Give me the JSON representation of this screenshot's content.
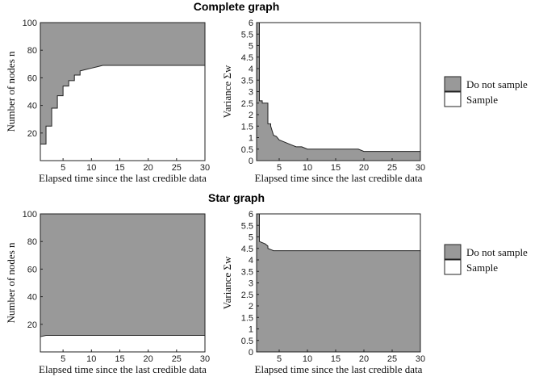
{
  "colors": {
    "do_not_sample": "#999999",
    "sample": "#ffffff",
    "axis": "#222222"
  },
  "sections": [
    {
      "title": "Complete graph"
    },
    {
      "title": "Star graph"
    }
  ],
  "legends": [
    {
      "items": [
        {
          "label": "Do not sample",
          "color": "#999999"
        },
        {
          "label": "Sample",
          "color": "#ffffff"
        }
      ]
    },
    {
      "items": [
        {
          "label": "Do not sample",
          "color": "#999999"
        },
        {
          "label": "Sample",
          "color": "#ffffff"
        }
      ]
    }
  ],
  "chart_data": [
    {
      "type": "area",
      "section": "Complete graph",
      "xlabel": "Elapsed time since the last credible data",
      "ylabel": "Number of nodes n",
      "xlim": [
        1,
        30
      ],
      "ylim": [
        0,
        100
      ],
      "xticks": [
        5,
        10,
        15,
        20,
        25,
        30
      ],
      "yticks": [
        20,
        40,
        60,
        80,
        100
      ],
      "upper_region": "Do not sample",
      "lower_region": "Sample",
      "boundary": {
        "x": [
          1,
          2,
          2,
          3,
          3,
          4,
          4,
          5,
          5,
          6,
          6,
          7,
          7,
          8,
          8,
          9,
          10,
          11,
          12,
          30
        ],
        "y": [
          12,
          12,
          25,
          25,
          38,
          38,
          47,
          47,
          54,
          54,
          58,
          58,
          62,
          62,
          65,
          66,
          67,
          68,
          69,
          69
        ]
      }
    },
    {
      "type": "area",
      "section": "Complete graph",
      "xlabel": "Elapsed time since the last credible data",
      "ylabel": "Variance Σw",
      "xlim": [
        1,
        30
      ],
      "ylim": [
        0,
        6
      ],
      "xticks": [
        5,
        10,
        15,
        20,
        25,
        30
      ],
      "yticks": [
        0,
        0.5,
        1,
        1.5,
        2,
        2.5,
        3,
        3.5,
        4,
        4.5,
        5,
        5.5,
        6
      ],
      "upper_region": "Sample",
      "lower_region": "Do not sample",
      "boundary": {
        "x": [
          1.5,
          1.5,
          2,
          2,
          3,
          3,
          3.5,
          3.5,
          4,
          4.5,
          5,
          6,
          7,
          8,
          9,
          10,
          11,
          19,
          20,
          30
        ],
        "y": [
          6,
          2.6,
          2.6,
          2.5,
          2.5,
          1.6,
          1.6,
          1.5,
          1.1,
          1.05,
          0.9,
          0.8,
          0.7,
          0.6,
          0.6,
          0.5,
          0.5,
          0.5,
          0.4,
          0.4
        ]
      }
    },
    {
      "type": "area",
      "section": "Star graph",
      "xlabel": "Elapsed time since the last credible data",
      "ylabel": "Number of nodes n",
      "xlim": [
        1,
        30
      ],
      "ylim": [
        0,
        100
      ],
      "xticks": [
        5,
        10,
        15,
        20,
        25,
        30
      ],
      "yticks": [
        20,
        40,
        60,
        80,
        100
      ],
      "upper_region": "Do not sample",
      "lower_region": "Sample",
      "boundary": {
        "x": [
          1,
          2,
          30
        ],
        "y": [
          11,
          12,
          12
        ]
      }
    },
    {
      "type": "area",
      "section": "Star graph",
      "xlabel": "Elapsed time since the last credible data",
      "ylabel": "Variance Σw",
      "xlim": [
        1,
        30
      ],
      "ylim": [
        0,
        6
      ],
      "xticks": [
        5,
        10,
        15,
        20,
        25,
        30
      ],
      "yticks": [
        0,
        0.5,
        1,
        1.5,
        2,
        2.5,
        3,
        3.5,
        4,
        4.5,
        5,
        5.5,
        6
      ],
      "upper_region": "Sample",
      "lower_region": "Do not sample",
      "boundary": {
        "x": [
          1.5,
          1.5,
          2.5,
          3,
          3,
          3.5,
          4,
          30
        ],
        "y": [
          6,
          4.8,
          4.7,
          4.6,
          4.5,
          4.45,
          4.4,
          4.4
        ]
      }
    }
  ]
}
